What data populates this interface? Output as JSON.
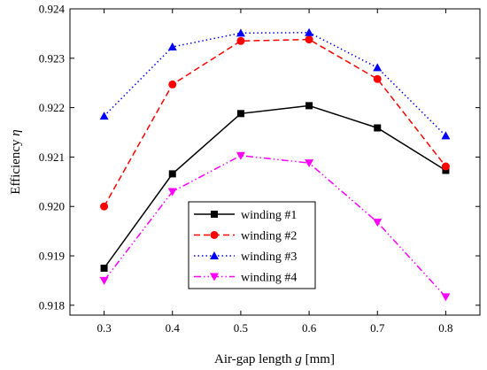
{
  "chart_data": {
    "type": "line",
    "xlabel": {
      "prefix": "Air-gap length ",
      "var": "g",
      "suffix": " [mm]"
    },
    "ylabel": {
      "prefix": "Efficiency ",
      "var": "η"
    },
    "xlim": [
      0.25,
      0.85
    ],
    "ylim": [
      0.9178,
      0.924
    ],
    "xticks": [
      "0.3",
      "0.4",
      "0.5",
      "0.6",
      "0.7",
      "0.8"
    ],
    "yticks": [
      "0.918",
      "0.919",
      "0.920",
      "0.921",
      "0.922",
      "0.923",
      "0.924"
    ],
    "grid": false,
    "legend_position": "center",
    "x": [
      0.3,
      0.4,
      0.5,
      0.6,
      0.7,
      0.8
    ],
    "series": [
      {
        "name": "winding #1",
        "color": "#000000",
        "dash": "solid",
        "marker": "square",
        "values": [
          0.91875,
          0.92066,
          0.92188,
          0.92204,
          0.92159,
          0.92073
        ]
      },
      {
        "name": "winding #2",
        "color": "#ff0000",
        "dash": "dashed",
        "marker": "circle",
        "values": [
          0.92,
          0.92247,
          0.92335,
          0.92338,
          0.92258,
          0.92081
        ]
      },
      {
        "name": "winding #3",
        "color": "#0000ff",
        "dash": "dotted",
        "marker": "triangle-up",
        "values": [
          0.92183,
          0.92323,
          0.92351,
          0.92352,
          0.92281,
          0.92143
        ]
      },
      {
        "name": "winding #4",
        "color": "#ff00ff",
        "dash": "dash-dot-dot",
        "marker": "triangle-down",
        "values": [
          0.9185,
          0.9203,
          0.92103,
          0.92088,
          0.91968,
          0.91817
        ]
      }
    ]
  }
}
